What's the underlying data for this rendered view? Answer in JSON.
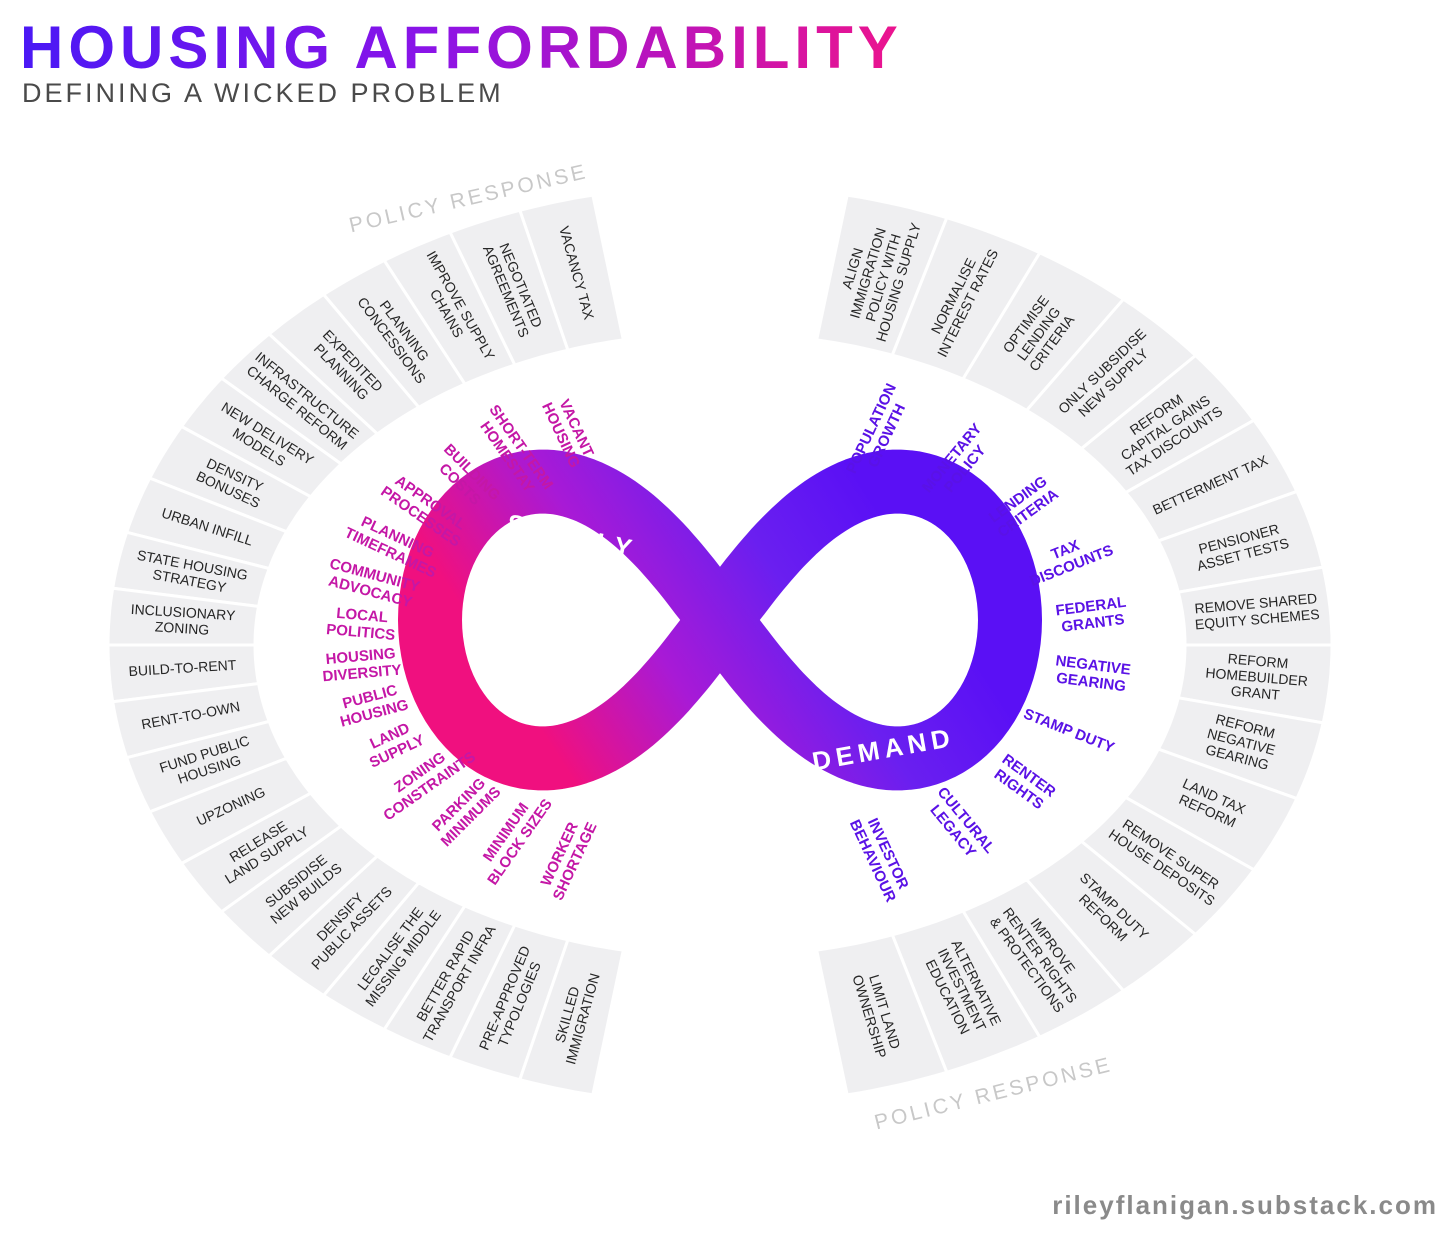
{
  "header": {
    "title": "HOUSING AFFORDABILITY",
    "subtitle": "DEFINING A WICKED PROBLEM"
  },
  "supply": {
    "label": "SUPPLY",
    "policy_heading": "POLICY RESPONSE",
    "color": "#c417a6",
    "drivers": [
      [
        "VACANT",
        "HOUSING"
      ],
      [
        "SHORT-TERM",
        "HOMESTAY"
      ],
      [
        "BUILDING",
        "COSTS"
      ],
      [
        "APPROVAL",
        "PROCESSES"
      ],
      [
        "PLANNING",
        "TIMEFRAMES"
      ],
      [
        "COMMUNITY",
        "ADVOCACY"
      ],
      [
        "LOCAL",
        "POLITICS"
      ],
      [
        "HOUSING",
        "DIVERSITY"
      ],
      [
        "PUBLIC",
        "HOUSING"
      ],
      [
        "LAND",
        "SUPPLY"
      ],
      [
        "ZONING",
        "CONSTRAINTS"
      ],
      [
        "PARKING",
        "MINIMUMS"
      ],
      [
        "MINIMUM",
        "BLOCK SIZES"
      ],
      [
        "WORKER",
        "SHORTAGE"
      ]
    ],
    "policies": [
      [
        "VACANCY TAX"
      ],
      [
        "NEGOTIATED",
        "AGREEMENTS"
      ],
      [
        "IMPROVE SUPPLY",
        "CHAINS"
      ],
      [
        "PLANNING",
        "CONCESSIONS"
      ],
      [
        "EXPEDITED",
        "PLANNING"
      ],
      [
        "INFRASTRUCTURE",
        "CHARGE REFORM"
      ],
      [
        "NEW DELIVERY",
        "MODELS"
      ],
      [
        "DENSITY",
        "BONUSES"
      ],
      [
        "URBAN INFILL"
      ],
      [
        "STATE HOUSING",
        "STRATEGY"
      ],
      [
        "INCLUSIONARY",
        "ZONING"
      ],
      [
        "BUILD-TO-RENT"
      ],
      [
        "RENT-TO-OWN"
      ],
      [
        "FUND PUBLIC",
        "HOUSING"
      ],
      [
        "UPZONING"
      ],
      [
        "RELEASE",
        "LAND SUPPLY"
      ],
      [
        "SUBSIDISE",
        "NEW BUILDS"
      ],
      [
        "DENSIFY",
        "PUBLIC ASSETS"
      ],
      [
        "LEGALISE THE",
        "MISSING MIDDLE"
      ],
      [
        "BETTER RAPID",
        "TRANSPORT INFRA"
      ],
      [
        "PRE-APPROVED",
        "TYPOLOGIES"
      ],
      [
        "SKILLED",
        "IMMIGRATION"
      ]
    ]
  },
  "demand": {
    "label": "DEMAND",
    "policy_heading": "POLICY RESPONSE",
    "color": "#5a12e6",
    "drivers": [
      [
        "POPULATION",
        "GROWTH"
      ],
      [
        "MONETARY",
        "POLICY"
      ],
      [
        "LENDING",
        "CRITERIA"
      ],
      [
        "TAX",
        "DISCOUNTS"
      ],
      [
        "FEDERAL",
        "GRANTS"
      ],
      [
        "NEGATIVE",
        "GEARING"
      ],
      [
        "STAMP DUTY"
      ],
      [
        "RENTER",
        "RIGHTS"
      ],
      [
        "CULTURAL",
        "LEGACY"
      ],
      [
        "INVESTOR",
        "BEHAVIOUR"
      ]
    ],
    "policies": [
      [
        "ALIGN",
        "IMMIGRATION",
        "POLICY WITH",
        "HOUSING SUPPLY"
      ],
      [
        "NORMALISE",
        "INTEREST RATES"
      ],
      [
        "OPTIMISE",
        "LENDING",
        "CRITERIA"
      ],
      [
        "ONLY SUBSIDISE",
        "NEW SUPPLY"
      ],
      [
        "REFORM",
        "CAPITAL GAINS",
        "TAX DISCOUNTS"
      ],
      [
        "BETTERMENT TAX"
      ],
      [
        "PENSIONER",
        "ASSET TESTS"
      ],
      [
        "REMOVE SHARED",
        "EQUITY SCHEMES"
      ],
      [
        "REFORM",
        "HOMEBUILDER",
        "GRANT"
      ],
      [
        "REFORM",
        "NEGATIVE",
        "GEARING"
      ],
      [
        "LAND TAX",
        "REFORM"
      ],
      [
        "REMOVE SUPER",
        "HOUSE DEPOSITS"
      ],
      [
        "STAMP DUTY",
        "REFORM"
      ],
      [
        "IMPROVE",
        "RENTER RIGHTS",
        "& PROTECTIONS"
      ],
      [
        "ALTERNATIVE",
        "INVESTMENT",
        "EDUCATION"
      ],
      [
        "LIMIT LAND",
        "OWNERSHIP"
      ]
    ]
  },
  "footer": "rileyflanigan.substack.com"
}
